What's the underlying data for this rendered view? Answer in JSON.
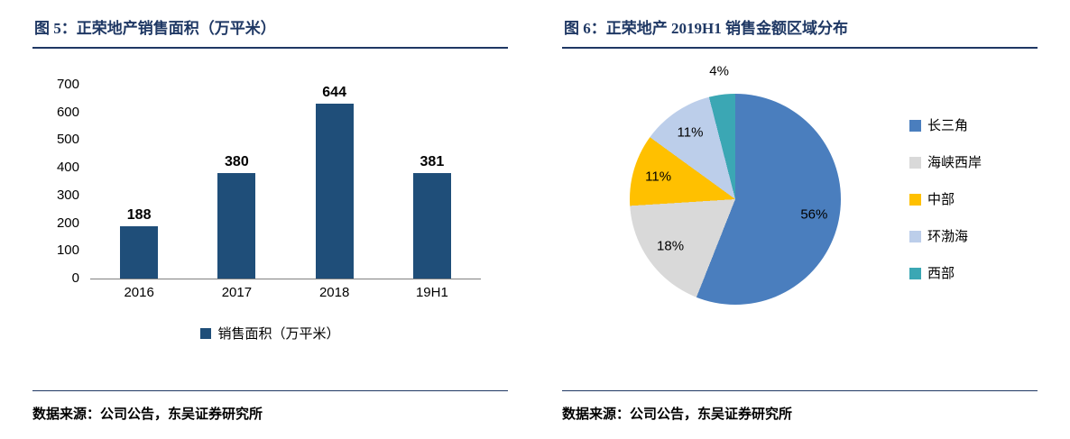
{
  "figure5": {
    "title": "图 5：正荣地产销售面积（万平米）",
    "source": "数据来源：公司公告，东吴证券研究所"
  },
  "figure6": {
    "title": "图 6：正荣地产 2019H1 销售金额区域分布",
    "source": "数据来源：公司公告，东吴证券研究所"
  },
  "chart_data": [
    {
      "type": "bar",
      "title": "正荣地产销售面积（万平米）",
      "categories": [
        "2016",
        "2017",
        "2018",
        "19H1"
      ],
      "values": [
        188,
        380,
        644,
        381
      ],
      "data_labels": [
        "188",
        "380",
        "644",
        "381"
      ],
      "ylim": [
        0,
        700
      ],
      "yticks": [
        0,
        100,
        200,
        300,
        400,
        500,
        600,
        700
      ],
      "grid": false,
      "bar_color": "#1F4E79",
      "legend_position": "bottom",
      "legend": [
        {
          "label": "销售面积（万平米）",
          "color": "#1F4E79"
        }
      ]
    },
    {
      "type": "pie",
      "title": "正荣地产 2019H1 销售金额区域分布",
      "labels": [
        "长三角",
        "海峡西岸",
        "中部",
        "环渤海",
        "西部"
      ],
      "values": [
        56,
        18,
        11,
        11,
        4
      ],
      "data_labels": [
        "56%",
        "18%",
        "11%",
        "11%",
        "4%"
      ],
      "colors": [
        "#4A7EBE",
        "#D9D9D9",
        "#FFC000",
        "#BCCEEA",
        "#3BA7B4"
      ],
      "start_angle_deg": 0,
      "direction": "clockwise",
      "legend_position": "right"
    }
  ],
  "theme": {
    "title_color": "#1F3864",
    "rule_color": "#1F3864",
    "axis_text_color": "#000000",
    "baseline_color": "#808080"
  }
}
